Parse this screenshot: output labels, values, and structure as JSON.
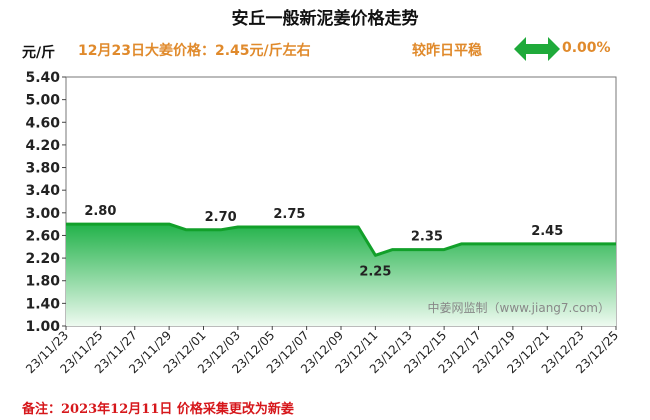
{
  "header": {
    "title": "安丘一般新泥姜价格走势",
    "unit": "元/斤",
    "price_note": "12月23日大姜价格：2.45元/斤左右",
    "compare_label": "较昨日平稳",
    "change_pct": "0.00%"
  },
  "footnote": "备注：2023年12月11日 价格采集更改为新姜",
  "watermark": "中姜网监制（www.jiang7.com）",
  "colors": {
    "title": "#111111",
    "accent_orange": "#e08a2c",
    "arrow_green": "#1faa3a",
    "line_green": "#12a02a",
    "fill_top": "#22b24a",
    "fill_bottom": "#eefaf0",
    "footnote_red": "#d6171b",
    "plot_border": "#777777"
  },
  "icons": {
    "trend": "double-arrow-left-right-icon"
  },
  "chart_data": {
    "type": "area",
    "title": "安丘一般新泥姜价格走势",
    "xlabel": "",
    "ylabel": "元/斤",
    "ylim": [
      1.0,
      5.4
    ],
    "yticks": [
      1.0,
      1.4,
      1.8,
      2.2,
      2.6,
      3.0,
      3.4,
      3.8,
      4.2,
      4.6,
      5.0,
      5.4
    ],
    "ytick_labels": [
      "1.00",
      "1.40",
      "1.80",
      "2.20",
      "2.60",
      "3.00",
      "3.40",
      "3.80",
      "4.20",
      "4.60",
      "5.00",
      "5.40"
    ],
    "x_start": "23/11/23",
    "x_end": "23/12/25",
    "xtick_labels": [
      "23/11/23",
      "23/11/25",
      "23/11/27",
      "23/11/29",
      "23/12/01",
      "23/12/03",
      "23/12/05",
      "23/12/07",
      "23/12/09",
      "23/12/11",
      "23/12/13",
      "23/12/15",
      "23/12/17",
      "23/12/19",
      "23/12/21",
      "23/12/23",
      "23/12/25"
    ],
    "points": [
      {
        "x": "23/11/23",
        "y": 2.8
      },
      {
        "x": "23/11/29",
        "y": 2.8
      },
      {
        "x": "23/11/30",
        "y": 2.7
      },
      {
        "x": "23/12/02",
        "y": 2.7
      },
      {
        "x": "23/12/03",
        "y": 2.75
      },
      {
        "x": "23/12/10",
        "y": 2.75
      },
      {
        "x": "23/12/11",
        "y": 2.25
      },
      {
        "x": "23/12/12",
        "y": 2.35
      },
      {
        "x": "23/12/15",
        "y": 2.35
      },
      {
        "x": "23/12/16",
        "y": 2.45
      },
      {
        "x": "23/12/25",
        "y": 2.45
      }
    ],
    "data_labels": [
      {
        "x": "23/11/25",
        "y": 2.8,
        "text": "2.80",
        "pos": "above"
      },
      {
        "x": "23/12/02",
        "y": 2.7,
        "text": "2.70",
        "pos": "above"
      },
      {
        "x": "23/12/06",
        "y": 2.75,
        "text": "2.75",
        "pos": "above"
      },
      {
        "x": "23/12/11",
        "y": 2.25,
        "text": "2.25",
        "pos": "below"
      },
      {
        "x": "23/12/14",
        "y": 2.35,
        "text": "2.35",
        "pos": "above"
      },
      {
        "x": "23/12/21",
        "y": 2.45,
        "text": "2.45",
        "pos": "above"
      }
    ],
    "grid": false,
    "legend": "none"
  }
}
